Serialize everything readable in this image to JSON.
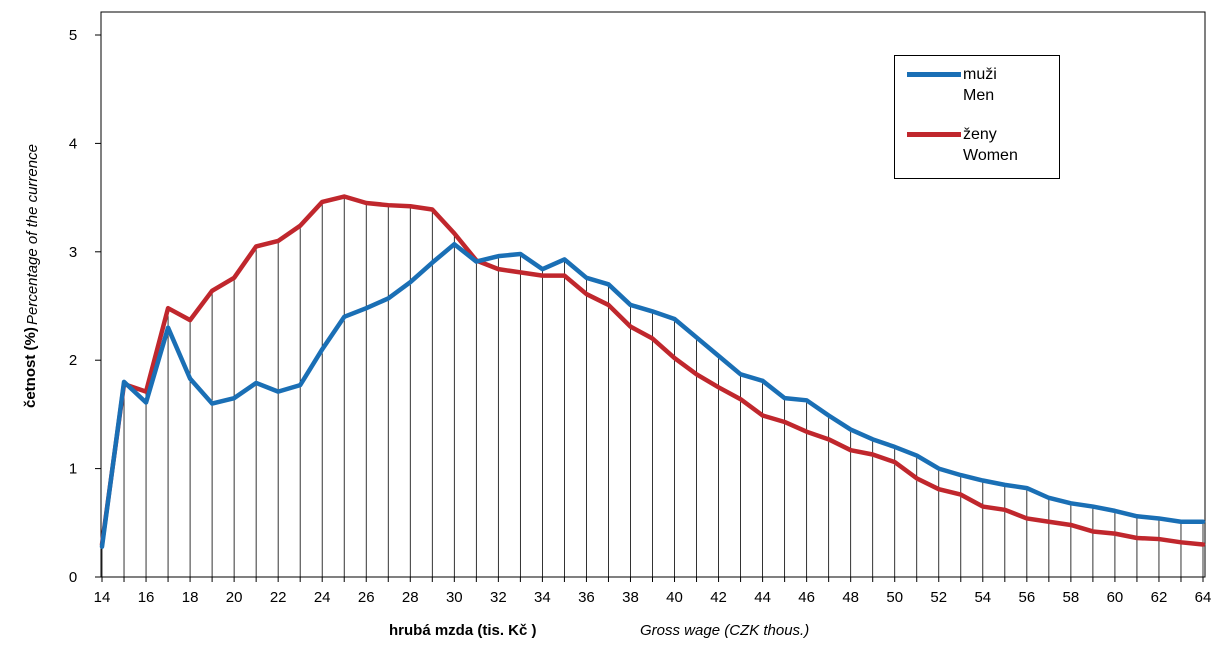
{
  "chart_data": {
    "type": "line",
    "x": [
      14,
      15,
      16,
      17,
      18,
      19,
      20,
      21,
      22,
      23,
      24,
      25,
      26,
      27,
      28,
      29,
      30,
      31,
      32,
      33,
      34,
      35,
      36,
      37,
      38,
      39,
      40,
      41,
      42,
      43,
      44,
      45,
      46,
      47,
      48,
      49,
      50,
      51,
      52,
      53,
      54,
      55,
      56,
      57,
      58,
      59,
      60,
      61,
      62,
      63,
      64
    ],
    "x_tick_labels": [
      "14",
      "16",
      "18",
      "20",
      "22",
      "24",
      "26",
      "28",
      "30",
      "32",
      "34",
      "36",
      "38",
      "40",
      "42",
      "44",
      "46",
      "48",
      "50",
      "52",
      "54",
      "56",
      "58",
      "60",
      "62",
      "64"
    ],
    "y_tick_labels": [
      "0",
      "1",
      "2",
      "3",
      "4",
      "5"
    ],
    "xlim": [
      14,
      64
    ],
    "ylim": [
      0,
      5
    ],
    "vertical_drop_lines": true,
    "xlabel_cz": "hrubá mzda (tis. Kč )",
    "xlabel_en": "Gross wage (CZK thous.)",
    "ylabel_cz": "četnost (%)",
    "ylabel_en": "Percentage of the currence",
    "legend_position": "top-right",
    "series": [
      {
        "name_cz": "muži",
        "name_en": "Men",
        "color": "#1a6fb5",
        "values": [
          0.28,
          1.8,
          1.61,
          2.3,
          1.83,
          1.6,
          1.65,
          1.79,
          1.71,
          1.77,
          2.1,
          2.4,
          2.48,
          2.57,
          2.72,
          2.9,
          3.07,
          2.91,
          2.96,
          2.98,
          2.84,
          2.93,
          2.76,
          2.7,
          2.51,
          2.45,
          2.38,
          2.21,
          2.04,
          1.87,
          1.81,
          1.65,
          1.63,
          1.49,
          1.36,
          1.27,
          1.2,
          1.12,
          1.0,
          0.94,
          0.89,
          0.85,
          0.82,
          0.73,
          0.68,
          0.65,
          0.61,
          0.56,
          0.54,
          0.51,
          0.51
        ]
      },
      {
        "name_cz": "ženy",
        "name_en": "Women",
        "color": "#c0272d",
        "values": [
          0.3,
          1.78,
          1.71,
          2.48,
          2.37,
          2.64,
          2.76,
          3.05,
          3.1,
          3.24,
          3.46,
          3.51,
          3.45,
          3.43,
          3.42,
          3.39,
          3.17,
          2.92,
          2.84,
          2.81,
          2.78,
          2.78,
          2.61,
          2.51,
          2.31,
          2.2,
          2.02,
          1.87,
          1.75,
          1.64,
          1.49,
          1.43,
          1.34,
          1.27,
          1.17,
          1.13,
          1.06,
          0.91,
          0.81,
          0.76,
          0.65,
          0.62,
          0.54,
          0.51,
          0.48,
          0.42,
          0.4,
          0.36,
          0.35,
          0.32,
          0.3
        ]
      }
    ]
  }
}
